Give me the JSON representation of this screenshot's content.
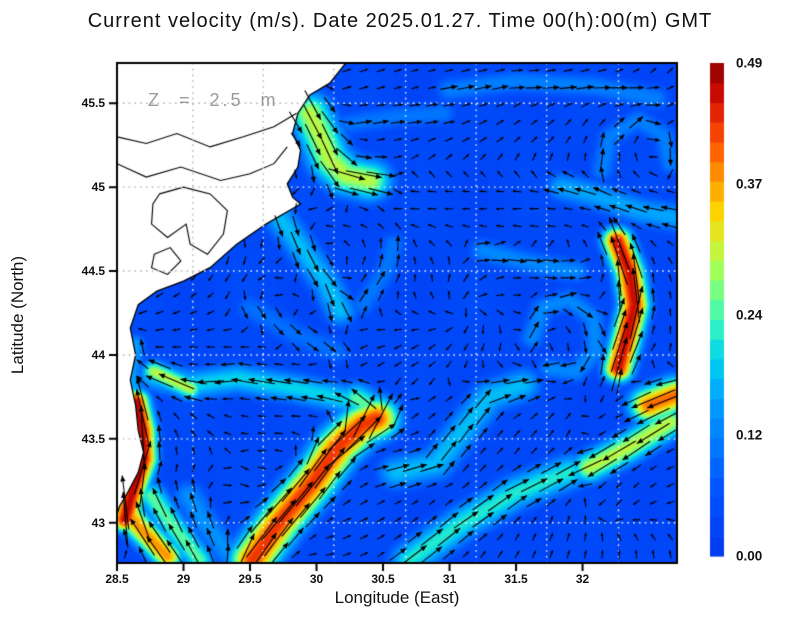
{
  "chart_data": {
    "type": "vector-heatmap",
    "title": "Current velocity (m/s). Date 2025.01.27. Time 00(h):00(m) GMT",
    "annotation": "Z = 2.5 m",
    "xlabel": "Longitude (East)",
    "ylabel": "Latitude (North)",
    "xlim": [
      28.5,
      32.71
    ],
    "ylim": [
      42.76,
      45.74
    ],
    "xticks": [
      28.5,
      29,
      29.5,
      30,
      30.5,
      31,
      31.5,
      32
    ],
    "yticks": [
      43,
      43.5,
      44,
      44.5,
      45,
      45.5
    ],
    "grid_lons": [
      29.07,
      29.6,
      30.13,
      30.67,
      31.2,
      31.73,
      32.27
    ],
    "grid_lats": [
      43,
      43.5,
      44,
      44.5,
      45,
      45.5
    ],
    "colorbar": {
      "min": 0.0,
      "max": 0.49,
      "ticks": [
        "0.00",
        "0.12",
        "0.24",
        "0.37",
        "0.49"
      ],
      "tick_values": [
        0.0,
        0.12,
        0.24,
        0.37,
        0.49
      ],
      "segments": 25
    },
    "colormap": [
      [
        0.0,
        "#0038f0"
      ],
      [
        0.14,
        "#0055ff"
      ],
      [
        0.25,
        "#0082ff"
      ],
      [
        0.33,
        "#00a8ff"
      ],
      [
        0.4,
        "#00d2f0"
      ],
      [
        0.46,
        "#2cf0c8"
      ],
      [
        0.52,
        "#64ff96"
      ],
      [
        0.58,
        "#a0ff5a"
      ],
      [
        0.64,
        "#d8f02e"
      ],
      [
        0.7,
        "#fcd200"
      ],
      [
        0.76,
        "#ffa000"
      ],
      [
        0.82,
        "#ff6400"
      ],
      [
        0.88,
        "#f03200"
      ],
      [
        0.94,
        "#c80a00"
      ],
      [
        1.0,
        "#8c0000"
      ]
    ],
    "background_speed": {
      "base": 0.028,
      "ripple": 0.018
    },
    "features": [
      {
        "name": "west-coast-jet",
        "pts": [
          [
            28.56,
            43.02
          ],
          [
            28.62,
            43.2
          ],
          [
            28.7,
            43.38
          ],
          [
            28.69,
            43.55
          ],
          [
            28.64,
            43.72
          ]
        ],
        "w": 0.055,
        "s": 0.47
      },
      {
        "name": "west-jet-extension",
        "pts": [
          [
            28.64,
            43.72
          ],
          [
            28.6,
            43.9
          ],
          [
            28.63,
            44.06
          ]
        ],
        "w": 0.05,
        "s": 0.16
      },
      {
        "name": "westward-band-43.8",
        "pts": [
          [
            30.3,
            43.72
          ],
          [
            29.85,
            43.8
          ],
          [
            29.4,
            43.86
          ],
          [
            29.05,
            43.82
          ],
          [
            28.78,
            43.88
          ]
        ],
        "w": 0.07,
        "s": 0.2
      },
      {
        "name": "band-west-yellow",
        "pts": [
          [
            29.05,
            43.8
          ],
          [
            28.78,
            43.9
          ]
        ],
        "w": 0.05,
        "s": 0.3
      },
      {
        "name": "central-jet",
        "pts": [
          [
            29.52,
            42.78
          ],
          [
            29.72,
            43.0
          ],
          [
            29.98,
            43.25
          ],
          [
            30.16,
            43.45
          ],
          [
            30.34,
            43.58
          ],
          [
            30.45,
            43.62
          ]
        ],
        "w": 0.09,
        "s": 0.43
      },
      {
        "name": "central-jet-crest",
        "pts": [
          [
            30.52,
            43.64
          ],
          [
            30.3,
            43.74
          ]
        ],
        "w": 0.07,
        "s": 0.25
      },
      {
        "name": "east-limb",
        "pts": [
          [
            30.6,
            43.3
          ],
          [
            30.9,
            43.35
          ],
          [
            31.1,
            43.55
          ],
          [
            31.3,
            43.75
          ],
          [
            31.55,
            43.82
          ]
        ],
        "w": 0.08,
        "s": 0.18
      },
      {
        "name": "se-band-west",
        "pts": [
          [
            30.7,
            42.78
          ],
          [
            31.1,
            43.0
          ],
          [
            31.5,
            43.18
          ],
          [
            31.9,
            43.3
          ]
        ],
        "w": 0.08,
        "s": 0.22
      },
      {
        "name": "se-band-east",
        "pts": [
          [
            32.66,
            43.6
          ],
          [
            32.35,
            43.45
          ],
          [
            32.05,
            43.33
          ]
        ],
        "w": 0.07,
        "s": 0.3
      },
      {
        "name": "right-edge-blob",
        "pts": [
          [
            32.7,
            43.76
          ],
          [
            32.5,
            43.7
          ]
        ],
        "w": 0.08,
        "s": 0.4
      },
      {
        "name": "right-jet",
        "pts": [
          [
            32.27,
            43.92
          ],
          [
            32.33,
            44.1
          ],
          [
            32.39,
            44.3
          ],
          [
            32.35,
            44.5
          ],
          [
            32.26,
            44.68
          ]
        ],
        "w": 0.06,
        "s": 0.46
      },
      {
        "name": "right-jet-fan",
        "pts": [
          [
            32.7,
            44.82
          ],
          [
            32.42,
            44.86
          ],
          [
            32.1,
            44.95
          ],
          [
            31.85,
            45.0
          ]
        ],
        "w": 0.07,
        "s": 0.16
      },
      {
        "name": "delta-patch",
        "pts": [
          [
            29.95,
            45.44
          ],
          [
            30.03,
            45.3
          ],
          [
            30.1,
            45.16
          ],
          [
            30.22,
            45.07
          ],
          [
            30.4,
            45.04
          ]
        ],
        "w": 0.09,
        "s": 0.3
      },
      {
        "name": "delta-east-band",
        "pts": [
          [
            30.25,
            45.38
          ],
          [
            30.6,
            45.42
          ],
          [
            30.95,
            45.44
          ]
        ],
        "w": 0.06,
        "s": 0.11
      },
      {
        "name": "cape-se-band",
        "pts": [
          [
            29.72,
            44.82
          ],
          [
            29.92,
            44.6
          ],
          [
            30.08,
            44.42
          ],
          [
            30.18,
            44.26
          ]
        ],
        "w": 0.07,
        "s": 0.18
      },
      {
        "name": "top-band",
        "pts": [
          [
            31.0,
            45.58
          ],
          [
            31.5,
            45.63
          ],
          [
            32.1,
            45.6
          ],
          [
            32.55,
            45.53
          ]
        ],
        "w": 0.06,
        "s": 0.12
      },
      {
        "name": "eddy-ring",
        "pts": [
          [
            31.62,
            44.1
          ],
          [
            31.7,
            44.28
          ],
          [
            31.9,
            44.33
          ],
          [
            32.08,
            44.22
          ],
          [
            32.1,
            44.02
          ],
          [
            31.95,
            43.9
          ],
          [
            31.75,
            43.92
          ]
        ],
        "w": 0.055,
        "s": 0.13
      },
      {
        "name": "band-44.5",
        "pts": [
          [
            31.25,
            44.62
          ],
          [
            31.6,
            44.55
          ],
          [
            31.95,
            44.5
          ]
        ],
        "w": 0.06,
        "s": 0.13
      },
      {
        "name": "corner-streak-red",
        "pts": [
          [
            28.88,
            42.8
          ],
          [
            28.66,
            42.98
          ],
          [
            28.54,
            43.1
          ]
        ],
        "w": 0.06,
        "s": 0.38
      },
      {
        "name": "corner-streak-2",
        "pts": [
          [
            29.12,
            42.78
          ],
          [
            28.92,
            42.98
          ],
          [
            28.76,
            43.16
          ]
        ],
        "w": 0.06,
        "s": 0.25
      },
      {
        "name": "corner-streak-3",
        "pts": [
          [
            29.38,
            42.78
          ],
          [
            29.16,
            43.0
          ],
          [
            29.04,
            43.16
          ]
        ],
        "w": 0.07,
        "s": 0.14
      },
      {
        "name": "tr-arc-eddy",
        "pts": [
          [
            32.15,
            45.1
          ],
          [
            32.2,
            45.3
          ],
          [
            32.42,
            45.4
          ],
          [
            32.62,
            45.3
          ],
          [
            32.66,
            45.14
          ]
        ],
        "w": 0.055,
        "s": 0.12
      },
      {
        "name": "mid-wisp-ne",
        "pts": [
          [
            30.35,
            44.3
          ],
          [
            30.52,
            44.5
          ],
          [
            30.58,
            44.66
          ]
        ],
        "w": 0.06,
        "s": 0.11
      },
      {
        "name": "mid-wisp-w",
        "pts": [
          [
            29.5,
            44.28
          ],
          [
            29.85,
            44.12
          ],
          [
            30.15,
            44.02
          ]
        ],
        "w": 0.07,
        "s": 0.1
      }
    ],
    "background_angles": {
      "lons": [
        28.5,
        28.97,
        29.44,
        29.9,
        30.37,
        30.84,
        31.31,
        31.77,
        32.24,
        32.71
      ],
      "lats": [
        45.74,
        45.31,
        44.89,
        44.46,
        44.03,
        43.61,
        43.18,
        42.76
      ],
      "deg": [
        [
          40,
          40,
          30,
          30,
          20,
          15,
          20,
          25,
          30,
          40
        ],
        [
          50,
          40,
          0,
          -15,
          5,
          20,
          30,
          45,
          70,
          100
        ],
        [
          60,
          30,
          -30,
          200,
          175,
          180,
          185,
          180,
          175,
          170
        ],
        [
          210,
          225,
          240,
          140,
          50,
          100,
          30,
          10,
          75,
          110
        ],
        [
          185,
          180,
          178,
          172,
          195,
          215,
          255,
          280,
          300,
          85
        ],
        [
          95,
          130,
          170,
          182,
          265,
          35,
          40,
          50,
          215,
          195
        ],
        [
          80,
          55,
          340,
          15,
          30,
          40,
          50,
          65,
          235,
          205
        ],
        [
          65,
          45,
          25,
          10,
          25,
          40,
          55,
          70,
          85,
          95
        ]
      ]
    },
    "land": {
      "coast_polygon": [
        [
          28.5,
          45.74
        ],
        [
          30.22,
          45.74
        ],
        [
          30.1,
          45.62
        ],
        [
          29.95,
          45.55
        ],
        [
          29.86,
          45.44
        ],
        [
          29.82,
          45.32
        ],
        [
          29.88,
          45.22
        ],
        [
          29.86,
          45.12
        ],
        [
          29.78,
          45.02
        ],
        [
          29.82,
          44.94
        ],
        [
          29.88,
          44.9
        ],
        [
          29.62,
          44.78
        ],
        [
          29.4,
          44.66
        ],
        [
          29.2,
          44.52
        ],
        [
          29.0,
          44.44
        ],
        [
          28.8,
          44.38
        ],
        [
          28.66,
          44.3
        ],
        [
          28.6,
          44.16
        ],
        [
          28.64,
          44.0
        ],
        [
          28.6,
          43.85
        ],
        [
          28.64,
          43.7
        ],
        [
          28.66,
          43.55
        ],
        [
          28.7,
          43.42
        ],
        [
          28.66,
          43.3
        ],
        [
          28.58,
          43.18
        ],
        [
          28.52,
          43.1
        ],
        [
          28.5,
          43.05
        ]
      ],
      "rivers": [
        [
          [
            28.5,
            45.3
          ],
          [
            28.72,
            45.26
          ],
          [
            28.95,
            45.32
          ],
          [
            29.2,
            45.24
          ],
          [
            29.45,
            45.3
          ],
          [
            29.68,
            45.36
          ],
          [
            29.85,
            45.44
          ]
        ],
        [
          [
            28.5,
            45.14
          ],
          [
            28.72,
            45.06
          ],
          [
            28.98,
            45.12
          ],
          [
            29.28,
            45.04
          ],
          [
            29.5,
            45.08
          ],
          [
            29.68,
            45.14
          ],
          [
            29.78,
            45.24
          ]
        ]
      ],
      "lakes": [
        [
          [
            28.82,
            44.96
          ],
          [
            29.0,
            45.0
          ],
          [
            29.2,
            44.96
          ],
          [
            29.33,
            44.86
          ],
          [
            29.3,
            44.72
          ],
          [
            29.18,
            44.6
          ],
          [
            29.05,
            44.66
          ],
          [
            29.02,
            44.78
          ],
          [
            28.88,
            44.7
          ],
          [
            28.76,
            44.78
          ],
          [
            28.77,
            44.9
          ]
        ],
        [
          [
            28.78,
            44.6
          ],
          [
            28.9,
            44.64
          ],
          [
            28.98,
            44.56
          ],
          [
            28.88,
            44.48
          ],
          [
            28.76,
            44.52
          ]
        ]
      ]
    },
    "arrows": {
      "dlon": 0.128,
      "dlat": 0.103,
      "scale": 115,
      "min_len": 4,
      "max_len": 56
    }
  }
}
